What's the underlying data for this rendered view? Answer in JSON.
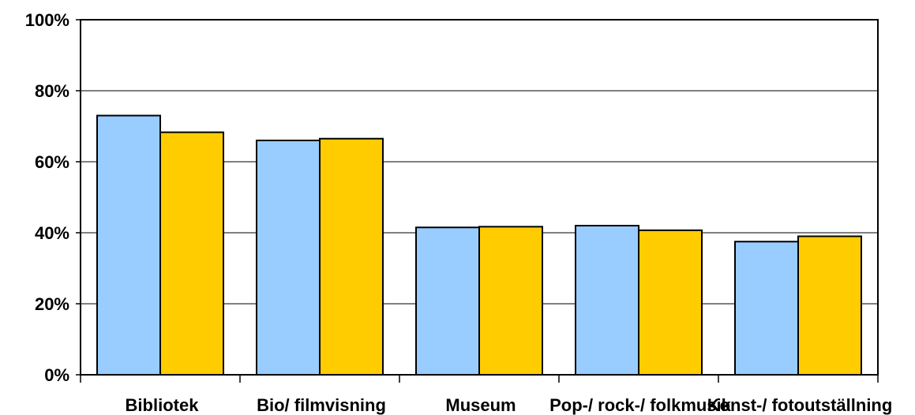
{
  "chart_data": {
    "type": "bar",
    "title": "",
    "xlabel": "",
    "ylabel": "",
    "categories": [
      "Bibliotek",
      "Bio/ filmvisning",
      "Museum",
      "Pop-/ rock-/ folkmusik",
      "Konst-/ fotoutställning"
    ],
    "series": [
      {
        "values": [
          73,
          66,
          41.5,
          42,
          37.5
        ],
        "color": "#99ccff"
      },
      {
        "values": [
          68.3,
          66.5,
          41.7,
          40.7,
          39
        ],
        "color": "#ffcc00"
      }
    ],
    "ylim": [
      0,
      100
    ],
    "yticks": [
      0,
      20,
      40,
      60,
      80,
      100
    ],
    "ytick_labels": [
      "0%",
      "20%",
      "40%",
      "60%",
      "80%",
      "100%"
    ],
    "grid": true,
    "legend": "none"
  }
}
